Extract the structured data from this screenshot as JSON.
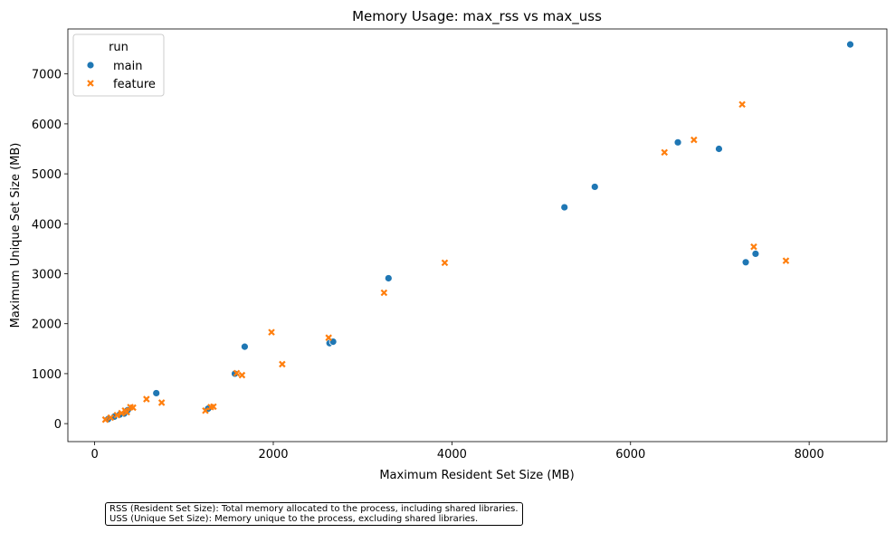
{
  "chart_data": {
    "type": "scatter",
    "title": "Memory Usage: max_rss vs max_uss",
    "xlabel": "Maximum Resident Set Size (MB)",
    "ylabel": "Maximum Unique Set Size (MB)",
    "xlim": [
      -300,
      8870
    ],
    "ylim": [
      -360,
      7900
    ],
    "xticks": [
      0,
      2000,
      4000,
      6000,
      8000
    ],
    "yticks": [
      0,
      1000,
      2000,
      3000,
      4000,
      5000,
      6000,
      7000
    ],
    "legend": {
      "title": "run",
      "position": "top-left",
      "entries": [
        "main",
        "feature"
      ]
    },
    "colors": {
      "main": "#1f77b4",
      "feature": "#ff7f0e"
    },
    "series": [
      {
        "name": "main",
        "marker": "circle",
        "points": [
          [
            8460,
            7590
          ],
          [
            6530,
            5630
          ],
          [
            6990,
            5500
          ],
          [
            5600,
            4740
          ],
          [
            5260,
            4330
          ],
          [
            7290,
            3230
          ],
          [
            7400,
            3400
          ],
          [
            3290,
            2910
          ],
          [
            2630,
            1610
          ],
          [
            2670,
            1640
          ],
          [
            1680,
            1540
          ],
          [
            1570,
            1000
          ],
          [
            690,
            610
          ],
          [
            1270,
            300
          ],
          [
            370,
            270
          ],
          [
            330,
            200
          ],
          [
            220,
            140
          ],
          [
            150,
            90
          ],
          [
            280,
            180
          ]
        ]
      },
      {
        "name": "feature",
        "marker": "x",
        "points": [
          [
            7250,
            6390
          ],
          [
            6710,
            5680
          ],
          [
            6380,
            5430
          ],
          [
            7380,
            3540
          ],
          [
            7740,
            3260
          ],
          [
            3920,
            3220
          ],
          [
            3240,
            2620
          ],
          [
            1980,
            1830
          ],
          [
            2620,
            1720
          ],
          [
            2100,
            1190
          ],
          [
            1590,
            1010
          ],
          [
            1650,
            970
          ],
          [
            580,
            490
          ],
          [
            750,
            420
          ],
          [
            1240,
            260
          ],
          [
            1300,
            330
          ],
          [
            1330,
            340
          ],
          [
            400,
            330
          ],
          [
            340,
            260
          ],
          [
            300,
            210
          ],
          [
            250,
            170
          ],
          [
            180,
            120
          ],
          [
            120,
            80
          ],
          [
            360,
            230
          ],
          [
            430,
            320
          ]
        ]
      }
    ]
  },
  "note": {
    "line1": "RSS (Resident Set Size): Total memory allocated to the process, including shared libraries.",
    "line2": "USS (Unique Set Size): Memory unique to the process, excluding shared libraries."
  }
}
